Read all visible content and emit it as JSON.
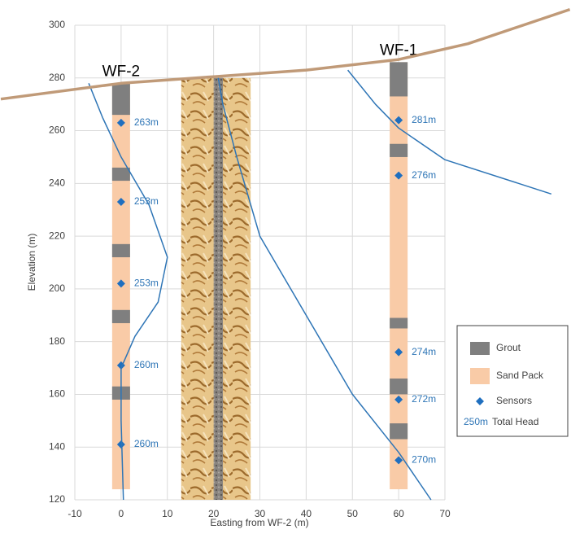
{
  "chart_data": {
    "type": "well-section",
    "xlabel": "Easting from WF-2 (m)",
    "ylabel": "Elevation (m)",
    "xlim": [
      -10,
      70
    ],
    "ylim": [
      120,
      300
    ],
    "xticks": [
      -10,
      0,
      10,
      20,
      30,
      40,
      50,
      60,
      70
    ],
    "yticks": [
      120,
      140,
      160,
      180,
      200,
      220,
      240,
      260,
      280,
      300
    ],
    "grid": true,
    "sand_color": "#f9cba7",
    "grout_color": "#7f7f7f",
    "sensor_color": "#1f6fbf",
    "head_color": "#2e75b6",
    "wells": [
      {
        "name": "WF-2",
        "x": 0,
        "top": 278,
        "bottom": 124,
        "grout": [
          [
            266,
            278
          ],
          [
            241,
            246
          ],
          [
            212,
            217
          ],
          [
            187,
            192
          ],
          [
            158,
            163
          ]
        ],
        "sensors": [
          263,
          233,
          202,
          171,
          141
        ],
        "sensor_labels": [
          "263m",
          "253m",
          "253m",
          "260m",
          "260m"
        ]
      },
      {
        "name": "WF-1",
        "x": 60,
        "top": 286,
        "bottom": 124,
        "grout": [
          [
            273,
            286
          ],
          [
            250,
            255
          ],
          [
            185,
            189
          ],
          [
            160,
            166
          ],
          [
            143,
            149
          ]
        ],
        "sensors": [
          264,
          243,
          176,
          158,
          135
        ],
        "sensor_labels": [
          "281m",
          "276m",
          "274m",
          "272m",
          "270m"
        ]
      }
    ],
    "fault_zone": {
      "xlim": [
        13,
        28
      ],
      "ylim": [
        120,
        280
      ],
      "core": [
        20,
        22
      ]
    },
    "ground": {
      "color": "#c09a78",
      "x": [
        -26,
        0,
        20,
        40,
        60,
        75,
        97
      ],
      "values": [
        272,
        278,
        280.5,
        283,
        287,
        293,
        306
      ]
    },
    "head_lines": [
      {
        "x": [
          -7,
          -4,
          0,
          6,
          10,
          8,
          3,
          0,
          0,
          0.5
        ],
        "values": [
          278,
          265,
          250,
          232,
          212,
          195,
          182,
          170,
          150,
          120
        ]
      },
      {
        "x": [
          21,
          22,
          25,
          30,
          40,
          50,
          60,
          67
        ],
        "values": [
          280,
          270,
          250,
          220,
          190,
          160,
          138,
          120
        ]
      },
      {
        "x": [
          49,
          55,
          60,
          70,
          93
        ],
        "values": [
          283,
          270,
          261,
          249,
          236
        ]
      }
    ],
    "legend": {
      "grout": "Grout",
      "sand": "Sand Pack",
      "sensors": "Sensors",
      "head_value": "250m",
      "head_text": "Total Head"
    }
  }
}
